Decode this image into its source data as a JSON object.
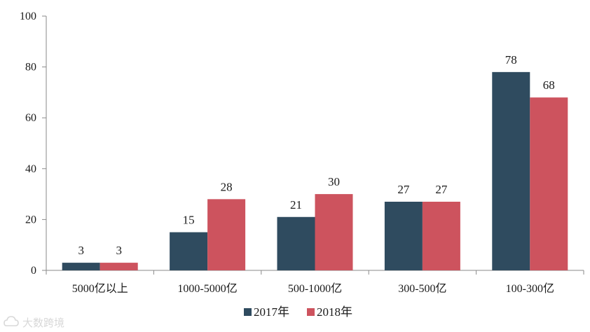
{
  "chart_data": {
    "type": "bar",
    "categories": [
      "5000亿以上",
      "1000-5000亿",
      "500-1000亿",
      "300-500亿",
      "100-300亿"
    ],
    "series": [
      {
        "name": "2017年",
        "values": [
          3,
          15,
          21,
          27,
          78
        ],
        "color": "#2f4b5f"
      },
      {
        "name": "2018年",
        "values": [
          3,
          28,
          30,
          27,
          68
        ],
        "color": "#cd535e"
      }
    ],
    "title": "",
    "xlabel": "",
    "ylabel": "",
    "ylim": [
      0,
      100
    ],
    "yticks": [
      0,
      20,
      40,
      60,
      80,
      100
    ],
    "grid": false,
    "legend": "bottom",
    "data_labels": true
  },
  "watermark": {
    "text": "大数跨境",
    "icon": "cloud-logo-icon"
  }
}
